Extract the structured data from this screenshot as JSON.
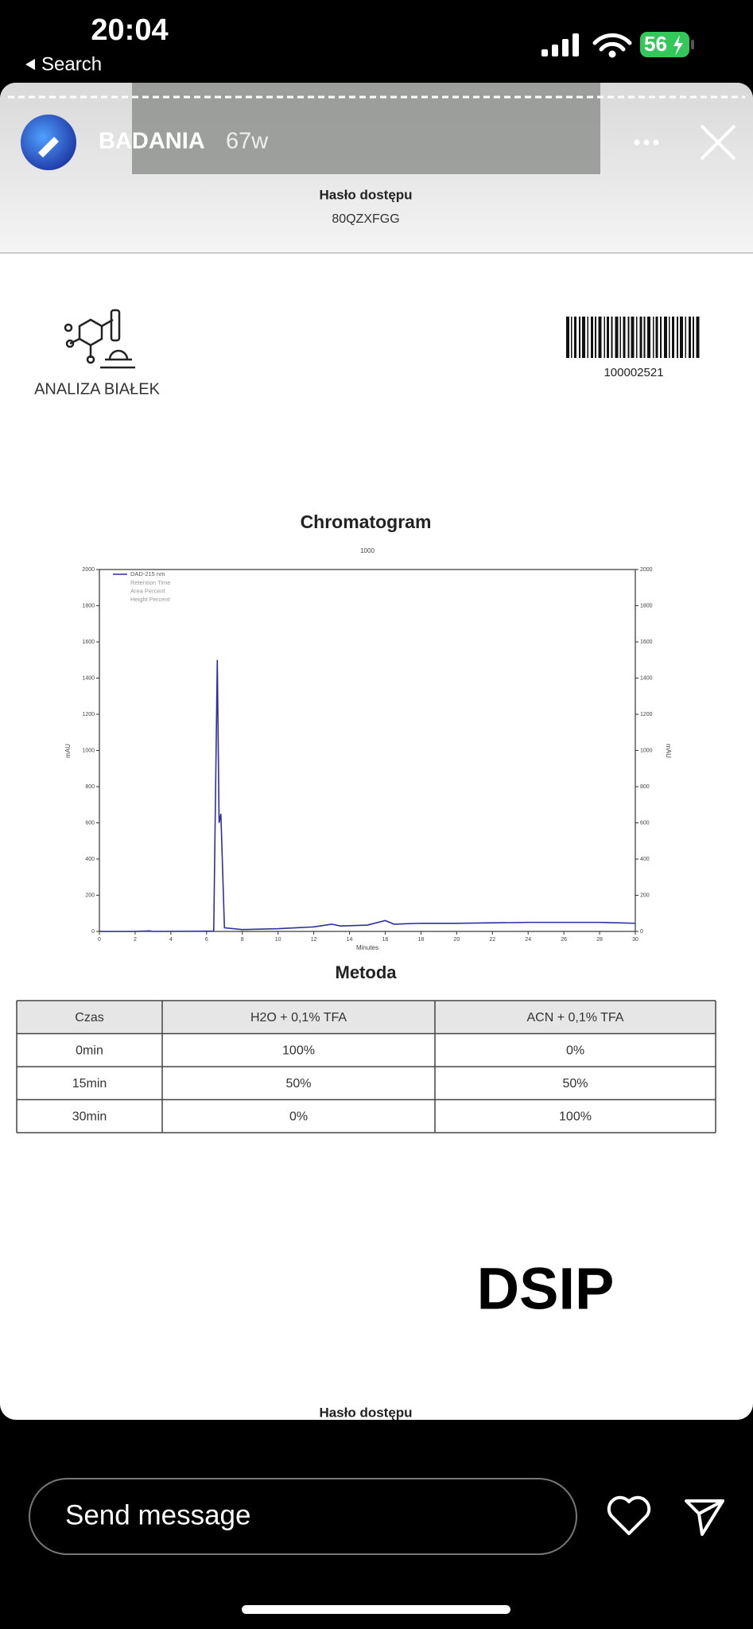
{
  "status_bar": {
    "time": "20:04",
    "back": "Search",
    "battery": "56"
  },
  "story_header": {
    "username": "BADANIA",
    "age": "67w"
  },
  "document": {
    "access_label": "Hasło dostępu",
    "access_code": "80QZXFGG",
    "logo_text": "ANALIZA BIAŁEK",
    "barcode_number": "100002521",
    "product": "DSIP",
    "footer_access_label": "Hasło dostępu"
  },
  "chart_data": {
    "type": "line",
    "title": "Chromatogram",
    "subtitle": "1000",
    "x_label": "Minutes",
    "y_label": "mAU",
    "annotations": [
      "Retention Time",
      "Area Percent",
      "Height Percent"
    ],
    "x": [
      0,
      2,
      2.8,
      3,
      6.4,
      6.6,
      6.7,
      6.8,
      7,
      8,
      10,
      12,
      13,
      13.5,
      15,
      16,
      16.5,
      18,
      20,
      24,
      28,
      30
    ],
    "series": [
      {
        "name": "DAD-215 nm",
        "color": "#2f2fa0",
        "values": [
          0,
          0,
          3,
          0,
          2,
          1500,
          600,
          650,
          20,
          10,
          15,
          25,
          40,
          30,
          35,
          60,
          40,
          45,
          45,
          50,
          50,
          45
        ]
      }
    ],
    "xlim": [
      0,
      30
    ],
    "ylim": [
      0,
      2000
    ],
    "xticks": [
      0,
      2,
      4,
      6,
      8,
      10,
      12,
      14,
      16,
      18,
      20,
      22,
      24,
      26,
      28,
      30
    ],
    "yticks": [
      0,
      200,
      400,
      600,
      800,
      1000,
      1200,
      1400,
      1600,
      1800,
      2000
    ]
  },
  "method": {
    "title": "Metoda",
    "header": [
      "Czas",
      "H2O + 0,1% TFA",
      "ACN + 0,1% TFA"
    ],
    "rows": [
      [
        "0min",
        "100%",
        "0%"
      ],
      [
        "15min",
        "50%",
        "50%"
      ],
      [
        "30min",
        "0%",
        "100%"
      ]
    ]
  },
  "composer": {
    "placeholder": "Send message"
  }
}
